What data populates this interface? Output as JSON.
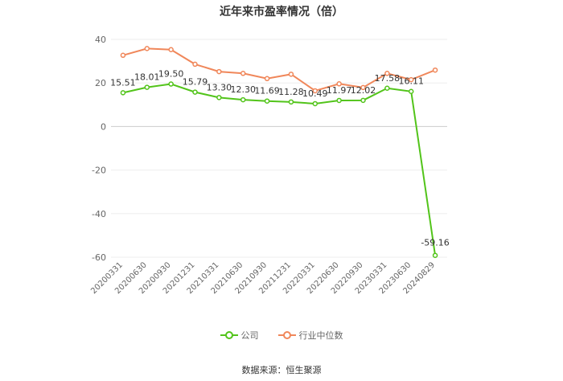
{
  "chart_data": {
    "type": "line",
    "title": "近年来市盈率情况（倍）",
    "categories": [
      "20200331",
      "20200630",
      "20200930",
      "20201231",
      "20210331",
      "20210630",
      "20210930",
      "20211231",
      "20220331",
      "20220630",
      "20220930",
      "20230331",
      "20230630",
      "20240829"
    ],
    "series": [
      {
        "name": "公司",
        "color": "#52c41a",
        "values": [
          15.51,
          18.01,
          19.5,
          15.79,
          13.3,
          12.3,
          11.69,
          11.28,
          10.49,
          11.97,
          12.02,
          17.58,
          16.11,
          -59.16
        ],
        "labels": [
          "15.51",
          "18.01",
          "19.50",
          "15.79",
          "13.30",
          "12.30",
          "11.69",
          "11.28",
          "10.49",
          "11.97",
          "12.02",
          "17.58",
          "16.11",
          "-59.16"
        ]
      },
      {
        "name": "行业中位数",
        "color": "#f0875a",
        "values": [
          32.7,
          35.8,
          35.3,
          28.6,
          25.2,
          24.4,
          22.0,
          24.0,
          16.4,
          19.6,
          17.9,
          24.4,
          21.5,
          25.9
        ]
      }
    ],
    "yticks": [
      40,
      20,
      0,
      -20,
      -40,
      -60
    ],
    "ylim": [
      -60,
      40
    ],
    "grid": true,
    "legend_position": "bottom"
  },
  "source_text": "数据来源：恒生聚源"
}
